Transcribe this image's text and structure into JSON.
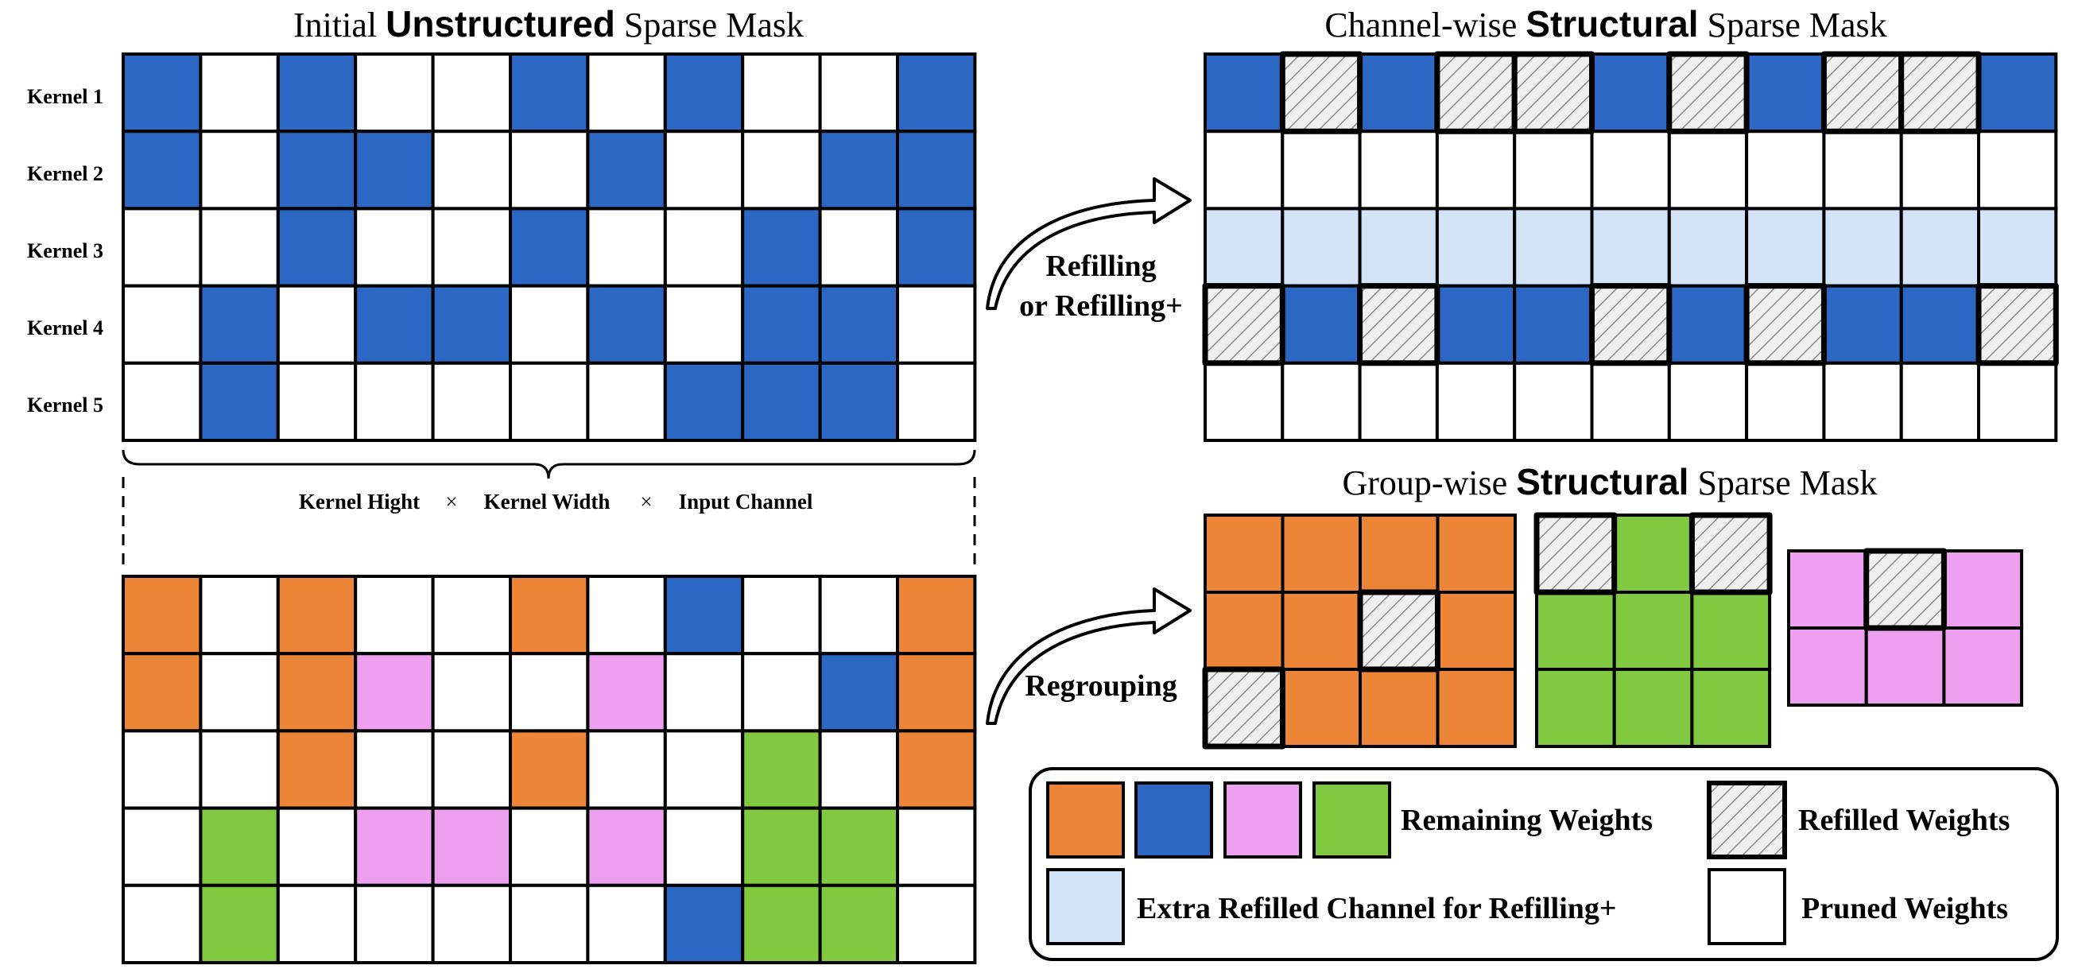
{
  "colors": {
    "blue": "#2d67c4",
    "orange": "#ec8537",
    "pink": "#eda0f0",
    "green": "#82c942",
    "light_blue": "#d4e4f8",
    "pruned": "#ffffff",
    "hatch_bg": "#efefef",
    "hatch_line": "#8a8a8a",
    "grid_line": "#000000"
  },
  "titles": {
    "initial": {
      "pre": "Initial ",
      "bold": "Unstructured",
      "post": " Sparse Mask"
    },
    "channel": {
      "pre": "Channel-wise ",
      "bold": "Structural",
      "post": " Sparse Mask"
    },
    "group": {
      "pre": "Group-wise ",
      "bold": "Structural",
      "post": " Sparse Mask"
    }
  },
  "kernel_labels": [
    "Kernel 1",
    "Kernel 2",
    "Kernel 3",
    "Kernel 4",
    "Kernel 5"
  ],
  "dimension_label": {
    "a": "Kernel Hight",
    "times1": "×",
    "b": "Kernel Width",
    "times2": "×",
    "c": "Input Channel"
  },
  "arrow_labels": {
    "refill_line1": "Refilling",
    "refill_line2": "or Refilling+",
    "regroup": "Regrouping"
  },
  "grids": {
    "initial": [
      "BWBWWBWBWWB",
      "BWBBWWBWWBB",
      "WWBWWBWWBWB",
      "WBWBBWBWBBW",
      "WBWWWWWBBBW"
    ],
    "regrouped": [
      "OWOWWOWBWWO",
      "OWOPWWPWWBO",
      "WWOWWOWWGWO",
      "WGWPPWPWGGW",
      "WGWWWWWBGGW"
    ],
    "channel": [
      "BHBHHBHBHHB",
      "WWWWWWWWWWW",
      "LLLLLLLLLLL",
      "HBHBBHBHBBH",
      "WWWWWWWWWWW"
    ],
    "group_orange": [
      "OOOO",
      "OOHO",
      "HOOO"
    ],
    "group_green": [
      "HGH",
      "GGG",
      "GGG"
    ],
    "group_pink": [
      "PHP",
      "PPP"
    ]
  },
  "legend": {
    "remaining": "Remaining Weights",
    "refilled": "Refilled Weights",
    "extra": "Extra Refilled Channel for Refilling+",
    "pruned": "Pruned Weights"
  }
}
